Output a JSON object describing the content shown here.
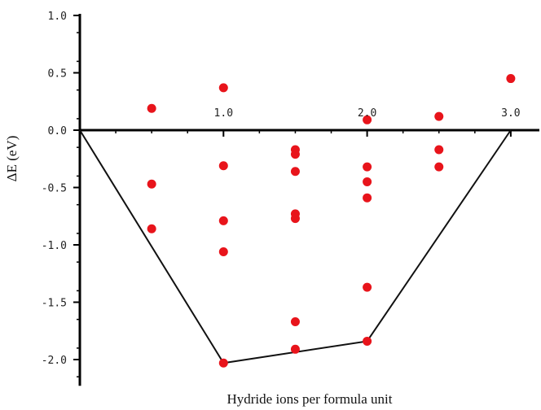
{
  "chart_data": {
    "type": "scatter",
    "title": "",
    "xlabel": "Hydride ions per formula unit",
    "ylabel": "ΔE (eV)",
    "xlim": [
      0,
      3.2
    ],
    "ylim": [
      -2.2,
      1.0
    ],
    "x_ticks": [
      1.0,
      2.0,
      3.0
    ],
    "x_tick_labels": [
      "1.0",
      "2.0",
      "3.0"
    ],
    "y_ticks": [
      1.0,
      0.5,
      0.0,
      -0.5,
      -1.0,
      -1.5,
      -2.0
    ],
    "y_tick_labels": [
      "1.0",
      "0.5",
      "0.0",
      "-0.5",
      "-1.0",
      "-1.5",
      "-2.0"
    ],
    "grid": false,
    "point_color": "#e8141b",
    "line_color": "#111111",
    "series": [
      {
        "name": "",
        "points": [
          {
            "x": 0.5,
            "y": 0.19
          },
          {
            "x": 0.5,
            "y": -0.47
          },
          {
            "x": 0.5,
            "y": -0.86
          },
          {
            "x": 1.0,
            "y": 0.37
          },
          {
            "x": 1.0,
            "y": -0.31
          },
          {
            "x": 1.0,
            "y": -0.79
          },
          {
            "x": 1.0,
            "y": -1.06
          },
          {
            "x": 1.0,
            "y": -2.03
          },
          {
            "x": 1.5,
            "y": -0.17
          },
          {
            "x": 1.5,
            "y": -0.21
          },
          {
            "x": 1.5,
            "y": -0.36
          },
          {
            "x": 1.5,
            "y": -0.73
          },
          {
            "x": 1.5,
            "y": -0.77
          },
          {
            "x": 1.5,
            "y": -1.67
          },
          {
            "x": 1.5,
            "y": -1.91
          },
          {
            "x": 2.0,
            "y": 0.09
          },
          {
            "x": 2.0,
            "y": -0.32
          },
          {
            "x": 2.0,
            "y": -0.45
          },
          {
            "x": 2.0,
            "y": -0.59
          },
          {
            "x": 2.0,
            "y": -1.37
          },
          {
            "x": 2.0,
            "y": -1.84
          },
          {
            "x": 2.5,
            "y": 0.12
          },
          {
            "x": 2.5,
            "y": -0.17
          },
          {
            "x": 2.5,
            "y": -0.32
          },
          {
            "x": 3.0,
            "y": 0.45
          }
        ]
      }
    ],
    "convex_hull": [
      {
        "x": 0.0,
        "y": 0.0
      },
      {
        "x": 1.0,
        "y": -2.03
      },
      {
        "x": 2.0,
        "y": -1.84
      },
      {
        "x": 3.0,
        "y": 0.0
      }
    ]
  }
}
